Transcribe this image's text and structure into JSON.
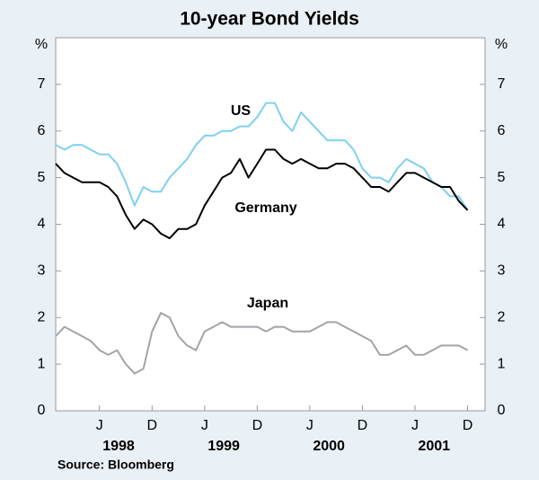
{
  "chart_data": {
    "type": "line",
    "title": "10-year Bond Yields",
    "y_unit": "%",
    "y2_unit": "%",
    "x": [
      "1998-01",
      "1998-02",
      "1998-03",
      "1998-04",
      "1998-05",
      "1998-06",
      "1998-07",
      "1998-08",
      "1998-09",
      "1998-10",
      "1998-11",
      "1998-12",
      "1999-01",
      "1999-02",
      "1999-03",
      "1999-04",
      "1999-05",
      "1999-06",
      "1999-07",
      "1999-08",
      "1999-09",
      "1999-10",
      "1999-11",
      "1999-12",
      "2000-01",
      "2000-02",
      "2000-03",
      "2000-04",
      "2000-05",
      "2000-06",
      "2000-07",
      "2000-08",
      "2000-09",
      "2000-10",
      "2000-11",
      "2000-12",
      "2001-01",
      "2001-02",
      "2001-03",
      "2001-04",
      "2001-05",
      "2001-06",
      "2001-07",
      "2001-08",
      "2001-09",
      "2001-10",
      "2001-11",
      "2001-12"
    ],
    "series": [
      {
        "name": "US",
        "color": "#7fd0f0",
        "values": [
          5.7,
          5.6,
          5.7,
          5.7,
          5.6,
          5.5,
          5.5,
          5.3,
          4.9,
          4.4,
          4.8,
          4.7,
          4.7,
          5.0,
          5.2,
          5.4,
          5.7,
          5.9,
          5.9,
          6.0,
          6.0,
          6.1,
          6.1,
          6.3,
          6.6,
          6.6,
          6.2,
          6.0,
          6.4,
          6.2,
          6.0,
          5.8,
          5.8,
          5.8,
          5.6,
          5.2,
          5.0,
          5.0,
          4.9,
          5.2,
          5.4,
          5.3,
          5.2,
          4.9,
          4.8,
          4.6,
          4.6,
          4.3
        ]
      },
      {
        "name": "Germany",
        "color": "#000000",
        "values": [
          5.3,
          5.1,
          5.0,
          4.9,
          4.9,
          4.9,
          4.8,
          4.6,
          4.2,
          3.9,
          4.1,
          4.0,
          3.8,
          3.7,
          3.9,
          3.9,
          4.0,
          4.4,
          4.7,
          5.0,
          5.1,
          5.4,
          5.0,
          5.3,
          5.6,
          5.6,
          5.4,
          5.3,
          5.4,
          5.3,
          5.2,
          5.2,
          5.3,
          5.3,
          5.2,
          5.0,
          4.8,
          4.8,
          4.7,
          4.9,
          5.1,
          5.1,
          5.0,
          4.9,
          4.8,
          4.8,
          4.5,
          4.3
        ]
      },
      {
        "name": "Japan",
        "color": "#a0a4a8",
        "values": [
          1.6,
          1.8,
          1.7,
          1.6,
          1.5,
          1.3,
          1.2,
          1.3,
          1.0,
          0.8,
          0.9,
          1.7,
          2.1,
          2.0,
          1.6,
          1.4,
          1.3,
          1.7,
          1.8,
          1.9,
          1.8,
          1.8,
          1.8,
          1.8,
          1.7,
          1.8,
          1.8,
          1.7,
          1.7,
          1.7,
          1.8,
          1.9,
          1.9,
          1.8,
          1.7,
          1.6,
          1.5,
          1.2,
          1.2,
          1.3,
          1.4,
          1.2,
          1.2,
          1.3,
          1.4,
          1.4,
          1.4,
          1.3
        ]
      }
    ],
    "xlim": [
      "1998-01",
      "2002-02"
    ],
    "xticks": [
      {
        "value": "1998-06",
        "label": "J"
      },
      {
        "value": "1998-12",
        "label": "D"
      },
      {
        "value": "1999-06",
        "label": "J"
      },
      {
        "value": "1999-12",
        "label": "D"
      },
      {
        "value": "2000-06",
        "label": "J"
      },
      {
        "value": "2000-12",
        "label": "D"
      },
      {
        "value": "2001-06",
        "label": "J"
      },
      {
        "value": "2001-12",
        "label": "D"
      }
    ],
    "x_year_labels": [
      "1998",
      "1999",
      "2000",
      "2001"
    ],
    "ylim": [
      0,
      8
    ],
    "yticks": [
      0,
      1,
      2,
      3,
      4,
      5,
      6,
      7
    ],
    "y2lim": [
      0,
      8
    ],
    "y2ticks": [
      0,
      1,
      2,
      3,
      4,
      5,
      6,
      7
    ],
    "source": "Source: Bloomberg"
  }
}
